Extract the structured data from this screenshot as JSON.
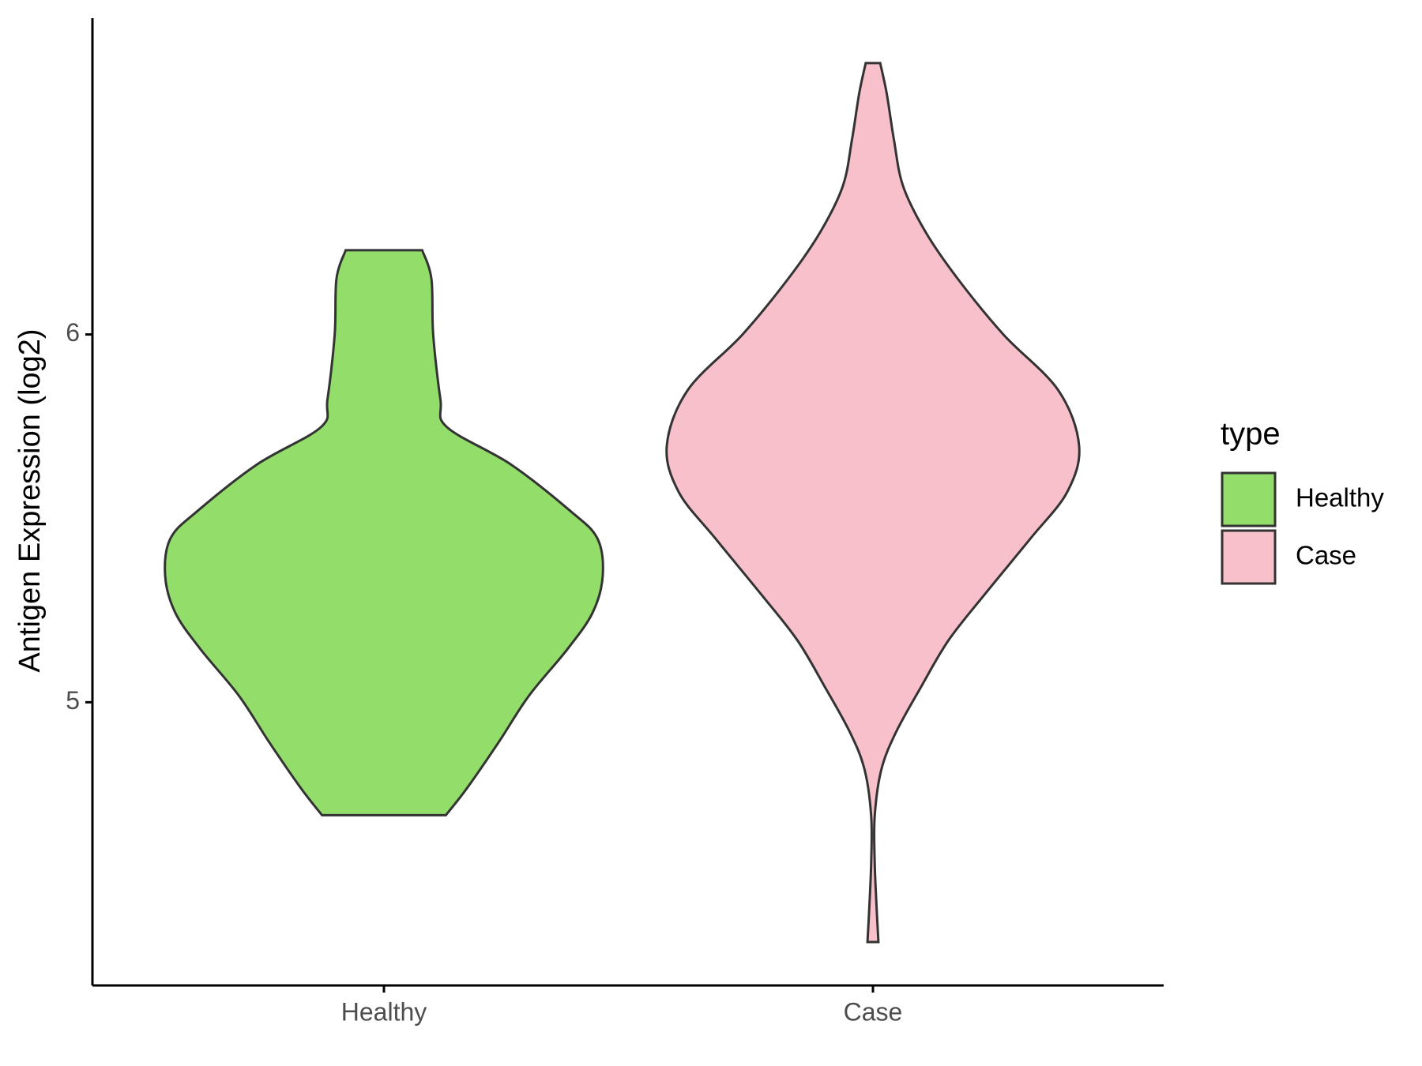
{
  "chart_data": {
    "type": "violin",
    "y_label": "Antigen Expression (log2)",
    "legend_title": "type",
    "categories": [
      "Healthy",
      "Case"
    ],
    "series": [
      {
        "name": "Healthy",
        "color": "#93dd6a",
        "y": [
          6.229,
          6.151,
          6.0,
          5.824,
          5.748,
          5.647,
          5.521,
          5.446,
          5.345,
          5.244,
          5.144,
          5.018,
          4.892,
          4.766,
          4.693
        ],
        "density": [
          0.175,
          0.217,
          0.225,
          0.258,
          0.288,
          0.579,
          0.85,
          0.975,
          1,
          0.954,
          0.838,
          0.663,
          0.525,
          0.379,
          0.283
        ]
      },
      {
        "name": "Case",
        "color": "#f7c0cb",
        "y": [
          6.738,
          6.655,
          6.529,
          6.403,
          6.277,
          6.151,
          6.0,
          5.849,
          5.698,
          5.572,
          5.446,
          5.295,
          5.169,
          5.043,
          4.917,
          4.816,
          4.69,
          4.564,
          4.438,
          4.348
        ],
        "density": [
          0.033,
          0.063,
          0.096,
          0.138,
          0.242,
          0.388,
          0.596,
          0.846,
          0.942,
          0.888,
          0.721,
          0.513,
          0.346,
          0.221,
          0.104,
          0.038,
          0.008,
          0.008,
          0.017,
          0.025
        ]
      }
    ],
    "ylim": [
      4.23,
      6.86
    ],
    "yticks": [
      5,
      6
    ]
  }
}
